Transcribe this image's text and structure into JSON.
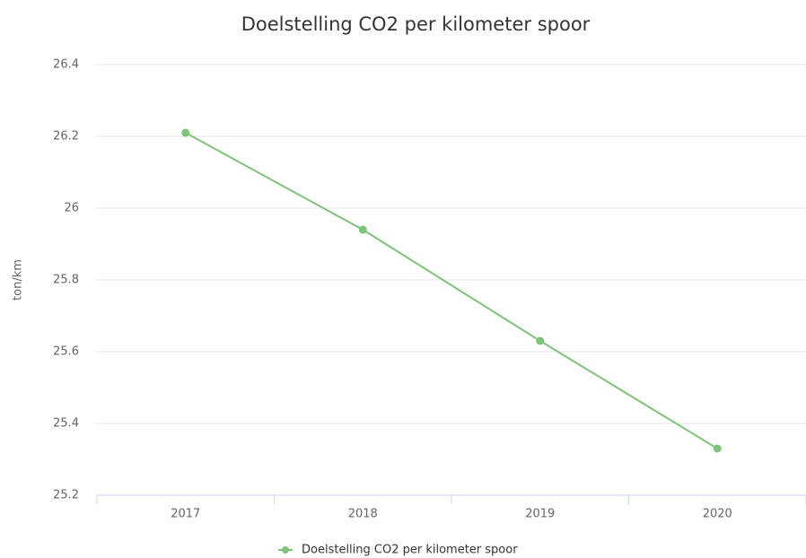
{
  "chart_data": {
    "type": "line",
    "title": "Doelstelling CO2 per kilometer spoor",
    "y_label": "ton/km",
    "categories": [
      "2017",
      "2018",
      "2019",
      "2020"
    ],
    "series": [
      {
        "name": "Doelstelling CO2 per kilometer spoor",
        "color": "#7cc576",
        "values": [
          26.21,
          25.94,
          25.63,
          25.33
        ]
      }
    ],
    "ylim": [
      25.2,
      26.4
    ],
    "yticks": [
      25.2,
      25.4,
      25.6,
      25.8,
      26,
      26.2,
      26.4
    ],
    "grid": true,
    "legend": "bottom"
  }
}
